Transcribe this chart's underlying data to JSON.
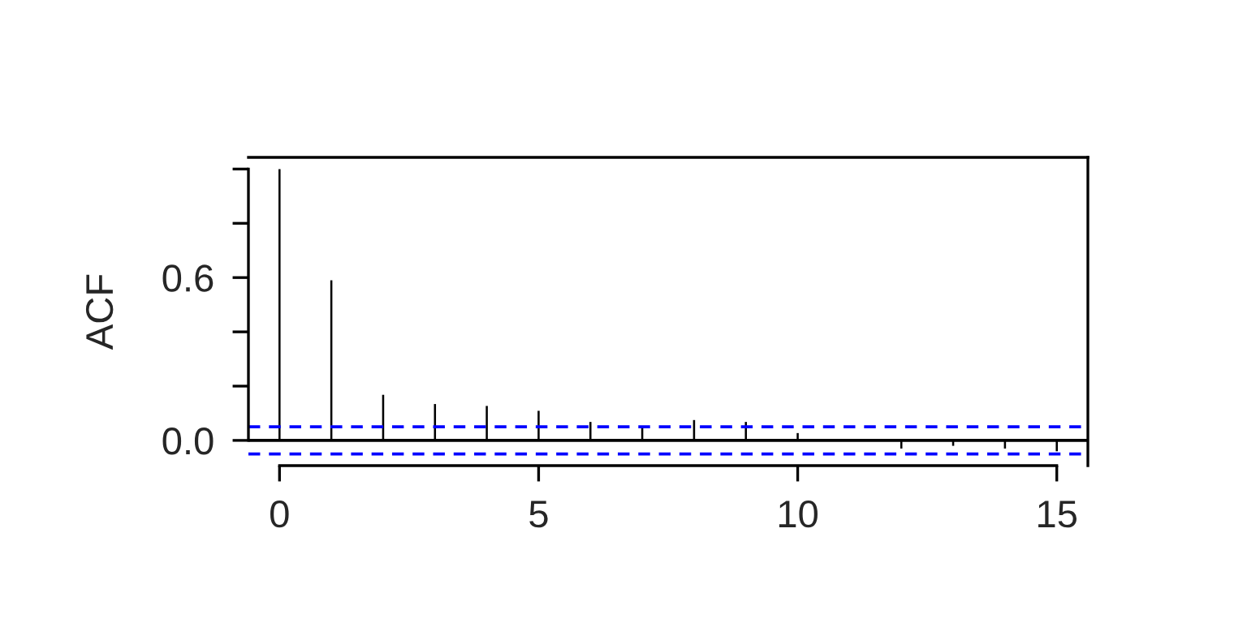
{
  "chart_data": {
    "type": "bar",
    "ylabel": "ACF",
    "x": [
      0,
      1,
      2,
      3,
      4,
      5,
      6,
      7,
      8,
      9,
      10,
      11,
      12,
      13,
      14,
      15
    ],
    "values": [
      1.0,
      0.59,
      0.168,
      0.134,
      0.127,
      0.109,
      0.068,
      0.052,
      0.075,
      0.068,
      0.027,
      0.0,
      -0.03,
      -0.02,
      -0.03,
      -0.04
    ],
    "color": "#000000",
    "xlim": [
      -0.6,
      15.6
    ],
    "ylim": [
      -0.093,
      1.043
    ],
    "xticks": [
      0,
      5,
      10,
      15
    ],
    "yticks": [
      {
        "value": 0.0,
        "label": "0.0"
      },
      {
        "value": 0.2,
        "label": null
      },
      {
        "value": 0.4,
        "label": null
      },
      {
        "value": 0.6,
        "label": "0.6"
      },
      {
        "value": 0.8,
        "label": null
      },
      {
        "value": 1.0,
        "label": null
      }
    ],
    "ref_lines": [
      {
        "axis": "y",
        "value": 0,
        "color": "#000000",
        "line_style": "solid"
      },
      {
        "axis": "y",
        "value": 0.05,
        "color": "#0000ff",
        "line_style": "dashed"
      },
      {
        "axis": "y",
        "value": -0.05,
        "color": "#0000ff",
        "line_style": "dashed"
      }
    ],
    "grid": false,
    "legend": false
  }
}
